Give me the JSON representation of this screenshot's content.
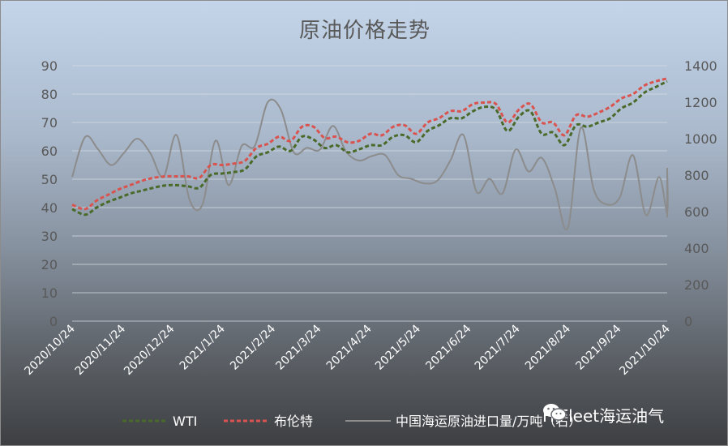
{
  "chart_data": {
    "type": "line",
    "title": "原油价格走势",
    "x_tick_labels": [
      "2020/10/24",
      "2020/11/24",
      "2020/12/24",
      "2021/1/24",
      "2021/2/24",
      "2021/3/24",
      "2021/4/24",
      "2021/5/24",
      "2021/6/24",
      "2021/7/24",
      "2021/8/24",
      "2021/9/24",
      "2021/10/24"
    ],
    "y_left": {
      "min": 0,
      "max": 90,
      "step": 10
    },
    "y_right": {
      "min": 0,
      "max": 1400,
      "step": 200
    },
    "legend_position": "bottom",
    "grid": true,
    "series": [
      {
        "name": "WTI",
        "axis": "left",
        "color": "#4a6a2a",
        "dash": "dashed",
        "points": [
          [
            "2020/10/24",
            39.5
          ],
          [
            "2020/11/1",
            37.5
          ],
          [
            "2020/11/8",
            40
          ],
          [
            "2020/11/15",
            42
          ],
          [
            "2020/11/22",
            43.5
          ],
          [
            "2020/11/29",
            45
          ],
          [
            "2020/12/6",
            46
          ],
          [
            "2020/12/13",
            47
          ],
          [
            "2020/12/20",
            47.8
          ],
          [
            "2020/12/27",
            47.9
          ],
          [
            "2021/1/3",
            47.5
          ],
          [
            "2021/1/10",
            47
          ],
          [
            "2021/1/17",
            51.5
          ],
          [
            "2021/1/24",
            52
          ],
          [
            "2021/1/31",
            52.5
          ],
          [
            "2021/2/7",
            53.5
          ],
          [
            "2021/2/14",
            58
          ],
          [
            "2021/2/21",
            59.5
          ],
          [
            "2021/2/28",
            61.5
          ],
          [
            "2021/3/7",
            60
          ],
          [
            "2021/3/14",
            65
          ],
          [
            "2021/3/21",
            64
          ],
          [
            "2021/3/28",
            61
          ],
          [
            "2021/4/4",
            62
          ],
          [
            "2021/4/11",
            59.5
          ],
          [
            "2021/4/18",
            60.5
          ],
          [
            "2021/4/25",
            62
          ],
          [
            "2021/5/2",
            62
          ],
          [
            "2021/5/9",
            65
          ],
          [
            "2021/5/16",
            65.5
          ],
          [
            "2021/5/23",
            63
          ],
          [
            "2021/5/30",
            67
          ],
          [
            "2021/6/6",
            69
          ],
          [
            "2021/6/13",
            71.5
          ],
          [
            "2021/6/20",
            71.5
          ],
          [
            "2021/6/27",
            74
          ],
          [
            "2021/7/4",
            75.5
          ],
          [
            "2021/7/11",
            74.5
          ],
          [
            "2021/7/18",
            67
          ],
          [
            "2021/7/25",
            72
          ],
          [
            "2021/8/1",
            74
          ],
          [
            "2021/8/8",
            66
          ],
          [
            "2021/8/15",
            66.5
          ],
          [
            "2021/8/22",
            62
          ],
          [
            "2021/8/29",
            69
          ],
          [
            "2021/9/5",
            68.5
          ],
          [
            "2021/9/12",
            70
          ],
          [
            "2021/9/19",
            71.5
          ],
          [
            "2021/9/26",
            75
          ],
          [
            "2021/10/3",
            77
          ],
          [
            "2021/10/10",
            80.5
          ],
          [
            "2021/10/17",
            82.5
          ],
          [
            "2021/10/24",
            84.5
          ]
        ]
      },
      {
        "name": "布伦特",
        "axis": "left",
        "color": "#d9534f",
        "dash": "dashed",
        "points": [
          [
            "2020/10/24",
            41
          ],
          [
            "2020/11/1",
            39.5
          ],
          [
            "2020/11/8",
            42.5
          ],
          [
            "2020/11/15",
            44.5
          ],
          [
            "2020/11/22",
            46.5
          ],
          [
            "2020/11/29",
            48
          ],
          [
            "2020/12/6",
            49.5
          ],
          [
            "2020/12/13",
            50.5
          ],
          [
            "2020/12/20",
            51
          ],
          [
            "2020/12/27",
            51
          ],
          [
            "2021/1/3",
            51
          ],
          [
            "2021/1/10",
            50.5
          ],
          [
            "2021/1/17",
            55
          ],
          [
            "2021/1/24",
            55
          ],
          [
            "2021/1/31",
            55.5
          ],
          [
            "2021/2/7",
            56.5
          ],
          [
            "2021/2/14",
            61
          ],
          [
            "2021/2/21",
            62.5
          ],
          [
            "2021/2/28",
            65
          ],
          [
            "2021/3/7",
            63.5
          ],
          [
            "2021/3/14",
            68.5
          ],
          [
            "2021/3/21",
            68.5
          ],
          [
            "2021/3/28",
            64.5
          ],
          [
            "2021/4/4",
            65
          ],
          [
            "2021/4/11",
            63
          ],
          [
            "2021/4/18",
            63.5
          ],
          [
            "2021/4/25",
            66
          ],
          [
            "2021/5/2",
            65.5
          ],
          [
            "2021/5/9",
            68.5
          ],
          [
            "2021/5/16",
            69
          ],
          [
            "2021/5/23",
            66
          ],
          [
            "2021/5/30",
            70
          ],
          [
            "2021/6/6",
            71.5
          ],
          [
            "2021/6/13",
            74
          ],
          [
            "2021/6/20",
            74
          ],
          [
            "2021/6/27",
            76.5
          ],
          [
            "2021/7/4",
            77
          ],
          [
            "2021/7/11",
            76.5
          ],
          [
            "2021/7/18",
            70
          ],
          [
            "2021/7/25",
            74.5
          ],
          [
            "2021/8/1",
            76.5
          ],
          [
            "2021/8/8",
            70
          ],
          [
            "2021/8/15",
            70
          ],
          [
            "2021/8/22",
            65.5
          ],
          [
            "2021/8/29",
            72.5
          ],
          [
            "2021/9/5",
            72
          ],
          [
            "2021/9/12",
            73.5
          ],
          [
            "2021/9/19",
            75.5
          ],
          [
            "2021/9/26",
            78.5
          ],
          [
            "2021/10/3",
            80
          ],
          [
            "2021/10/10",
            83
          ],
          [
            "2021/10/17",
            84.5
          ],
          [
            "2021/10/24",
            85.5
          ]
        ]
      },
      {
        "name": "中国海运原油进口量/万吨（右）",
        "axis": "right",
        "color": "#8c8c8c",
        "dash": "solid",
        "points": [
          [
            "2020/10/24",
            790
          ],
          [
            "2020/11/1",
            1010
          ],
          [
            "2020/11/9",
            940
          ],
          [
            "2020/11/17",
            855
          ],
          [
            "2020/11/25",
            925
          ],
          [
            "2020/12/3",
            1000
          ],
          [
            "2020/12/11",
            920
          ],
          [
            "2020/12/19",
            790
          ],
          [
            "2020/12/27",
            1020
          ],
          [
            "2021/1/4",
            665
          ],
          [
            "2021/1/12",
            640
          ],
          [
            "2021/1/20",
            990
          ],
          [
            "2021/1/28",
            745
          ],
          [
            "2021/2/5",
            960
          ],
          [
            "2021/2/13",
            960
          ],
          [
            "2021/2/21",
            1200
          ],
          [
            "2021/3/1",
            1160
          ],
          [
            "2021/3/9",
            925
          ],
          [
            "2021/3/17",
            950
          ],
          [
            "2021/3/25",
            940
          ],
          [
            "2021/4/2",
            1070
          ],
          [
            "2021/4/10",
            930
          ],
          [
            "2021/4/18",
            880
          ],
          [
            "2021/4/26",
            905
          ],
          [
            "2021/5/4",
            910
          ],
          [
            "2021/5/12",
            800
          ],
          [
            "2021/5/20",
            780
          ],
          [
            "2021/5/28",
            755
          ],
          [
            "2021/6/5",
            770
          ],
          [
            "2021/6/13",
            880
          ],
          [
            "2021/6/21",
            1020
          ],
          [
            "2021/6/29",
            710
          ],
          [
            "2021/7/7",
            780
          ],
          [
            "2021/7/15",
            700
          ],
          [
            "2021/7/23",
            940
          ],
          [
            "2021/7/31",
            820
          ],
          [
            "2021/8/8",
            895
          ],
          [
            "2021/8/16",
            730
          ],
          [
            "2021/8/24",
            510
          ],
          [
            "2021/9/1",
            1060
          ],
          [
            "2021/9/9",
            720
          ],
          [
            "2021/9/17",
            640
          ],
          [
            "2021/9/25",
            680
          ],
          [
            "2021/10/3",
            910
          ],
          [
            "2021/10/11",
            580
          ],
          [
            "2021/10/19",
            790
          ],
          [
            "2021/10/27",
            590
          ],
          [
            "2021/11/4",
            820
          ],
          [
            "2021/11/12",
            600
          ],
          [
            "2021/11/20",
            600
          ],
          [
            "2021/11/28",
            840
          ]
        ]
      }
    ]
  },
  "legend": [
    {
      "label": "WTI",
      "color": "#4a6a2a",
      "dash": "dashed"
    },
    {
      "label": "布伦特",
      "color": "#d9534f",
      "dash": "dashed"
    },
    {
      "label": "中国海运原油进口量/万吨（右）",
      "color": "#8c8c8c",
      "dash": "solid"
    }
  ],
  "watermark": {
    "icon": "wechat-icon",
    "text": "HiFleet海运油气"
  }
}
